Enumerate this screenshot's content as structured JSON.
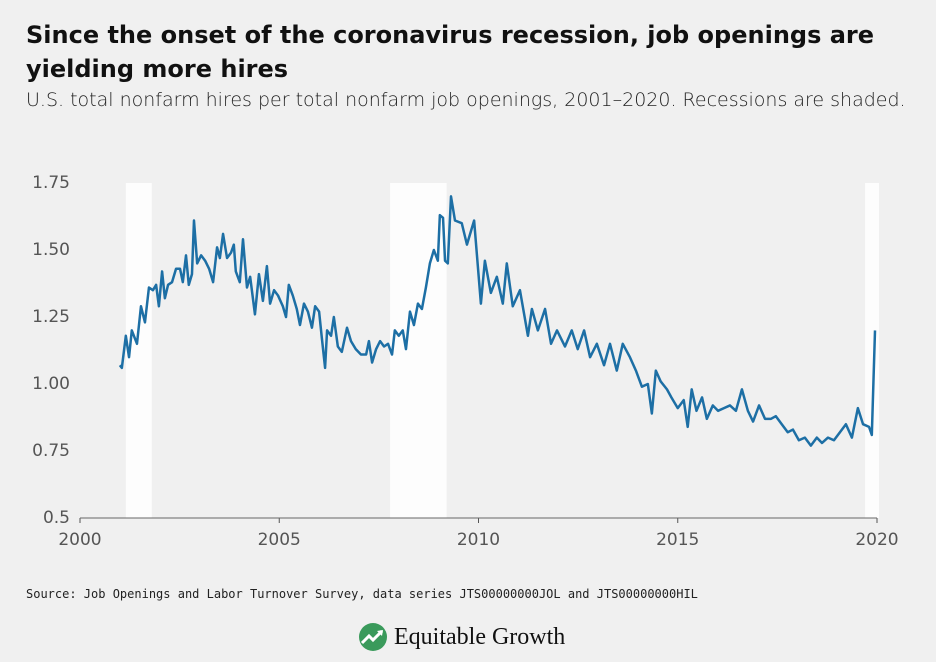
{
  "chart_data": {
    "type": "line",
    "title": "Since the onset of the coronavirus recession, job openings are yielding more hires",
    "subtitle": "U.S. total nonfarm hires per total nonfarm job openings, 2001–2020. Recessions are shaded.",
    "source": "Source: Job Openings and Labor Turnover Survey, data series JTS00000000JOL and JTS00000000HIL",
    "logo": "Equitable Growth",
    "xlim": [
      2000,
      2020
    ],
    "ylim": [
      0.5,
      1.75
    ],
    "xticks": [
      2000,
      2005,
      2010,
      2015,
      2020
    ],
    "yticks": [
      0.5,
      0.75,
      {
        "value": 1,
        "label": "1.00"
      },
      1.25,
      {
        "value": 1.5,
        "label": "1.50"
      },
      1.75
    ],
    "recessions": [
      [
        2001.15,
        2001.8
      ],
      [
        2007.78,
        2009.2
      ],
      [
        2019.7,
        2020.05
      ]
    ],
    "color": "#1d6fa5",
    "x": [
      2001.0,
      2001.05,
      2001.15,
      2001.23,
      2001.3,
      2001.43,
      2001.53,
      2001.63,
      2001.73,
      2001.83,
      2001.91,
      2001.98,
      2002.06,
      2002.13,
      2002.21,
      2002.31,
      2002.41,
      2002.51,
      2002.58,
      2002.66,
      2002.73,
      2002.81,
      2002.86,
      2002.94,
      2003.04,
      2003.14,
      2003.24,
      2003.34,
      2003.44,
      2003.51,
      2003.59,
      2003.69,
      2003.79,
      2003.86,
      2003.91,
      2004.01,
      2004.09,
      2004.19,
      2004.27,
      2004.39,
      2004.49,
      2004.59,
      2004.69,
      2004.77,
      2004.87,
      2004.97,
      2005.09,
      2005.17,
      2005.24,
      2005.34,
      2005.44,
      2005.52,
      2005.62,
      2005.72,
      2005.82,
      2005.9,
      2006.0,
      2006.07,
      2006.15,
      2006.2,
      2006.3,
      2006.37,
      2006.47,
      2006.57,
      2006.7,
      2006.8,
      2006.92,
      2007.05,
      2007.18,
      2007.25,
      2007.33,
      2007.43,
      2007.53,
      2007.63,
      2007.73,
      2007.83,
      2007.9,
      2008.0,
      2008.1,
      2008.18,
      2008.28,
      2008.38,
      2008.48,
      2008.58,
      2008.68,
      2008.78,
      2008.88,
      2008.98,
      2009.03,
      2009.11,
      2009.16,
      2009.23,
      2009.31,
      2009.41,
      2009.58,
      2009.71,
      2009.89,
      2010.06,
      2010.16,
      2010.31,
      2010.46,
      2010.61,
      2010.71,
      2010.86,
      2011.04,
      2011.24,
      2011.34,
      2011.49,
      2011.67,
      2011.82,
      2011.97,
      2012.17,
      2012.34,
      2012.49,
      2012.65,
      2012.8,
      2012.97,
      2013.15,
      2013.3,
      2013.47,
      2013.62,
      2013.8,
      2013.95,
      2014.1,
      2014.25,
      2014.35,
      2014.45,
      2014.57,
      2014.73,
      2014.84,
      2015.0,
      2015.15,
      2015.25,
      2015.35,
      2015.47,
      2015.61,
      2015.73,
      2015.88,
      2016.01,
      2016.16,
      2016.31,
      2016.46,
      2016.61,
      2016.76,
      2016.89,
      2017.04,
      2017.19,
      2017.34,
      2017.46,
      2017.61,
      2017.76,
      2017.89,
      2018.04,
      2018.19,
      2018.34,
      2018.49,
      2018.62,
      2018.77,
      2018.92,
      2019.07,
      2019.22,
      2019.37,
      2019.52,
      2019.65,
      2019.8,
      2019.87,
      2019.95
    ],
    "values": [
      1.07,
      1.06,
      1.18,
      1.1,
      1.2,
      1.15,
      1.29,
      1.23,
      1.36,
      1.35,
      1.37,
      1.29,
      1.42,
      1.32,
      1.37,
      1.38,
      1.43,
      1.43,
      1.38,
      1.48,
      1.37,
      1.41,
      1.61,
      1.45,
      1.48,
      1.46,
      1.43,
      1.38,
      1.51,
      1.47,
      1.56,
      1.47,
      1.49,
      1.52,
      1.42,
      1.38,
      1.54,
      1.36,
      1.4,
      1.26,
      1.41,
      1.31,
      1.44,
      1.3,
      1.35,
      1.33,
      1.29,
      1.25,
      1.37,
      1.33,
      1.28,
      1.22,
      1.3,
      1.27,
      1.21,
      1.29,
      1.27,
      1.17,
      1.06,
      1.2,
      1.18,
      1.25,
      1.14,
      1.12,
      1.21,
      1.16,
      1.13,
      1.11,
      1.11,
      1.16,
      1.08,
      1.13,
      1.16,
      1.14,
      1.15,
      1.11,
      1.2,
      1.18,
      1.2,
      1.13,
      1.27,
      1.22,
      1.3,
      1.28,
      1.36,
      1.45,
      1.5,
      1.46,
      1.63,
      1.62,
      1.46,
      1.45,
      1.7,
      1.61,
      1.6,
      1.52,
      1.61,
      1.3,
      1.46,
      1.34,
      1.4,
      1.3,
      1.45,
      1.29,
      1.35,
      1.18,
      1.28,
      1.2,
      1.28,
      1.15,
      1.2,
      1.14,
      1.2,
      1.13,
      1.2,
      1.1,
      1.15,
      1.07,
      1.15,
      1.05,
      1.15,
      1.1,
      1.05,
      0.99,
      1.0,
      0.89,
      1.05,
      1.01,
      0.98,
      0.95,
      0.91,
      0.94,
      0.84,
      0.98,
      0.9,
      0.95,
      0.87,
      0.92,
      0.9,
      0.91,
      0.92,
      0.9,
      0.98,
      0.9,
      0.86,
      0.92,
      0.87,
      0.87,
      0.88,
      0.85,
      0.82,
      0.83,
      0.79,
      0.8,
      0.77,
      0.8,
      0.78,
      0.8,
      0.79,
      0.82,
      0.85,
      0.8,
      0.91,
      0.85,
      0.84,
      0.81,
      1.2
    ]
  }
}
